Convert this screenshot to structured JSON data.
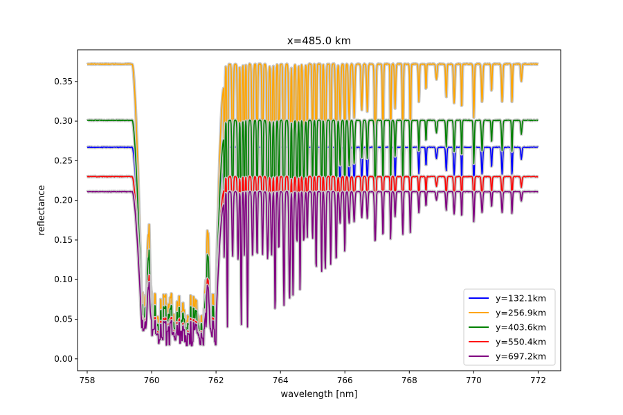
{
  "chart_data": {
    "type": "line",
    "title": "x=485.0 km",
    "xlabel": "wavelength [nm]",
    "ylabel": "reflectance",
    "xlim": [
      757.7,
      772.7
    ],
    "ylim": [
      -0.015,
      0.39
    ],
    "xticks": [
      758,
      760,
      762,
      764,
      766,
      768,
      770,
      772
    ],
    "yticks": [
      0.0,
      0.05,
      0.1,
      0.15,
      0.2,
      0.25,
      0.3,
      0.35
    ],
    "ytick_labels": [
      "0.00",
      "0.05",
      "0.10",
      "0.15",
      "0.20",
      "0.25",
      "0.30",
      "0.35"
    ],
    "grid": false,
    "legend_position": "lower-right",
    "series": [
      {
        "name": "y=132.1km",
        "color": "#0000ff",
        "continuum": 0.263
      },
      {
        "name": "y=256.9km",
        "color": "#ffa500",
        "continuum": 0.368
      },
      {
        "name": "y=403.6km",
        "color": "#008000",
        "continuum": 0.297
      },
      {
        "name": "y=550.4km",
        "color": "#ff0000",
        "continuum": 0.226
      },
      {
        "name": "y=697.2km",
        "color": "#800080",
        "continuum": 0.207
      }
    ]
  }
}
